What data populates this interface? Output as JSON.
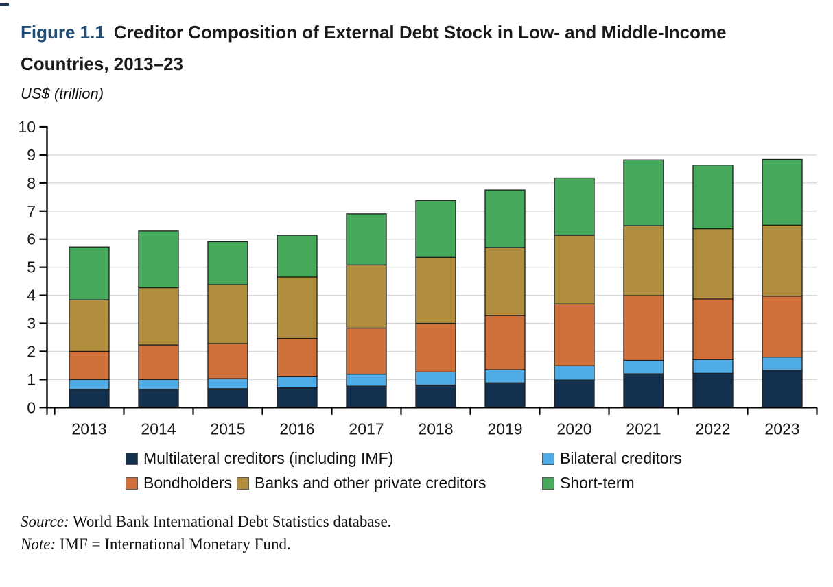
{
  "figure": {
    "label": "Figure 1.1",
    "title_line1": "Creditor Composition of External Debt Stock in Low- and Middle-Income",
    "title_line2": "Countries, 2013–23",
    "unit_label": "US$ (trillion)",
    "accent_color": "#1f4e79"
  },
  "chart_data": {
    "type": "bar",
    "stacked": true,
    "title": "Creditor Composition of External Debt Stock in Low- and Middle-Income Countries, 2013–23",
    "ylabel": "US$ (trillion)",
    "xlabel": "",
    "ylim": [
      0,
      10
    ],
    "yticks": [
      0,
      1,
      2,
      3,
      4,
      5,
      6,
      7,
      8,
      9,
      10
    ],
    "grid": true,
    "legend_position": "bottom",
    "categories": [
      "2013",
      "2014",
      "2015",
      "2016",
      "2017",
      "2018",
      "2019",
      "2020",
      "2021",
      "2022",
      "2023"
    ],
    "series": [
      {
        "name": "Multilateral creditors (including IMF)",
        "color": "#13304f",
        "values": [
          0.65,
          0.65,
          0.67,
          0.7,
          0.76,
          0.8,
          0.88,
          0.98,
          1.2,
          1.22,
          1.33
        ]
      },
      {
        "name": "Bilateral creditors",
        "color": "#4face6",
        "values": [
          0.35,
          0.35,
          0.36,
          0.4,
          0.43,
          0.47,
          0.47,
          0.51,
          0.48,
          0.49,
          0.47
        ]
      },
      {
        "name": "Bondholders",
        "color": "#d0713b",
        "values": [
          1.0,
          1.23,
          1.25,
          1.36,
          1.64,
          1.73,
          1.93,
          2.2,
          2.31,
          2.16,
          2.17
        ]
      },
      {
        "name": "Banks and other private creditors",
        "color": "#b18d3e",
        "values": [
          1.84,
          2.04,
          2.1,
          2.19,
          2.25,
          2.35,
          2.42,
          2.45,
          2.49,
          2.5,
          2.53
        ]
      },
      {
        "name": "Short-term",
        "color": "#47a95b",
        "values": [
          1.88,
          2.02,
          1.53,
          1.49,
          1.82,
          2.03,
          2.05,
          2.04,
          2.34,
          2.27,
          2.34
        ]
      }
    ],
    "colors": {
      "grid": "#d9d9d9",
      "axis": "#000000",
      "bar_outline": "#1f1f1f"
    }
  },
  "source": {
    "lead": "Source:",
    "text": " World Bank International Debt Statistics database."
  },
  "note": {
    "lead": "Note:",
    "text": " IMF = International Monetary Fund."
  }
}
